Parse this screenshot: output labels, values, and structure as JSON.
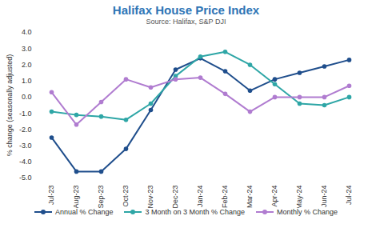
{
  "chart_data": {
    "type": "line",
    "title": "Halifax House Price Index",
    "subtitle": "Source: Halifax, S&P DJI",
    "y_label": "% change (seasonally adjusted)",
    "categories": [
      "Jul-23",
      "Aug-23",
      "Sep-23",
      "Oct-23",
      "Nov-23",
      "Dec-23",
      "Jan-24",
      "Feb-24",
      "Mar-24",
      "Apr-24",
      "May-24",
      "Jun-24",
      "Jul-24"
    ],
    "series": [
      {
        "name": "Annual % Change",
        "color": "#1F4E8C",
        "marker": "circle",
        "values": [
          -2.5,
          -4.6,
          -4.6,
          -3.2,
          -0.8,
          1.7,
          2.4,
          1.6,
          0.4,
          1.1,
          1.5,
          1.9,
          2.3
        ]
      },
      {
        "name": "3 Month on 3 Month % Change",
        "color": "#2EA6A6",
        "marker": "circle",
        "values": [
          -0.9,
          -1.1,
          -1.2,
          -1.4,
          -0.4,
          1.3,
          2.5,
          2.8,
          2.0,
          0.8,
          -0.4,
          -0.5,
          0.0
        ]
      },
      {
        "name": "Monthly % Change",
        "color": "#B07CD0",
        "marker": "circle",
        "values": [
          0.3,
          -1.7,
          -0.3,
          1.1,
          0.6,
          1.1,
          1.2,
          0.2,
          -0.9,
          0.0,
          0.0,
          0.0,
          0.7
        ]
      }
    ],
    "ylim": [
      -5,
      4
    ],
    "yticks": [
      {
        "value": 4,
        "label": "4.0"
      },
      {
        "value": 3,
        "label": "3.0"
      },
      {
        "value": 2,
        "label": "2.0"
      },
      {
        "value": 1,
        "label": "1.0"
      },
      {
        "value": 0,
        "label": "0.0"
      },
      {
        "value": -1,
        "label": "-1.0"
      },
      {
        "value": -2,
        "label": "-2.0"
      },
      {
        "value": -3,
        "label": "-3.0"
      },
      {
        "value": -4,
        "label": "-4.0"
      },
      {
        "value": -5,
        "label": "-5.0"
      }
    ],
    "grid": false,
    "legend": "bottom"
  }
}
